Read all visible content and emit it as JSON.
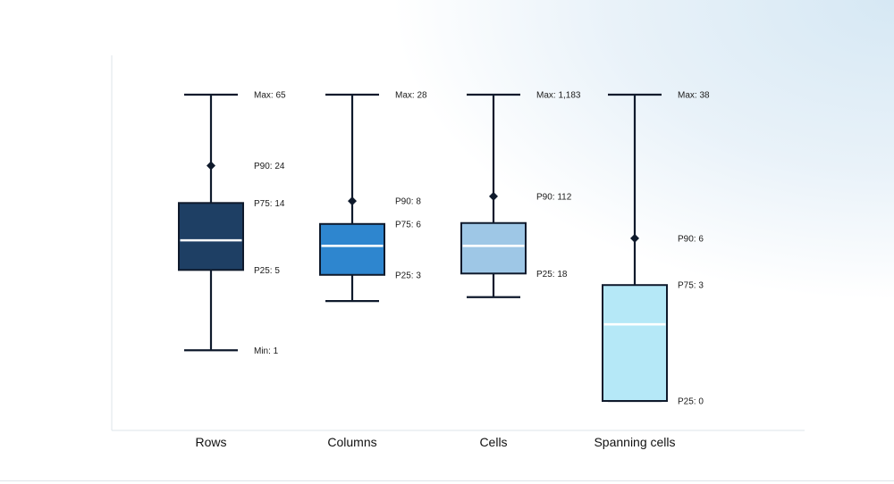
{
  "chart_data": {
    "type": "box",
    "title": "",
    "xlabel": "",
    "ylabel": "",
    "scale": "log",
    "ylim": [
      1,
      65
    ],
    "grid": false,
    "legend": "none",
    "categories": [
      "Rows",
      "Columns",
      "Cells",
      "Spanning cells"
    ],
    "series": [
      {
        "name": "Rows",
        "color": "#1e3f64",
        "values": {
          "min": 1,
          "p25": 5,
          "median": 8,
          "p75": 14,
          "p90": 24,
          "max": 65
        },
        "labels": {
          "max": "Max: 65",
          "p90": "P90: 24",
          "p75": "P75: 14",
          "p25": "P25: 5",
          "min": "Min: 1"
        }
      },
      {
        "name": "Columns",
        "color": "#2e86cf",
        "values": {
          "min": 2,
          "p25": 3,
          "median": 4.5,
          "p75": 6,
          "p90": 8,
          "max": 28
        },
        "labels": {
          "max": "Max: 28",
          "p90": "P90: 8",
          "p75": "P75: 6",
          "p25": "P25: 3"
        }
      },
      {
        "name": "Cells",
        "color": "#9ec7e6",
        "values": {
          "min": 10,
          "p25": 18,
          "median": 35,
          "p75": 60,
          "p90": 112,
          "max": 1183
        },
        "labels": {
          "max": "Max: 1,183",
          "p90": "P90: 112",
          "p25": "P25: 18"
        }
      },
      {
        "name": "Spanning cells",
        "color": "#b5e8f7",
        "values": {
          "min": 0,
          "p25": 0,
          "median": 1.5,
          "p75": 3,
          "p90": 6,
          "max": 38
        },
        "labels": {
          "max": "Max: 38",
          "p90": "P90: 6",
          "p75": "P75: 3",
          "p25": "P25: 0"
        }
      }
    ]
  }
}
